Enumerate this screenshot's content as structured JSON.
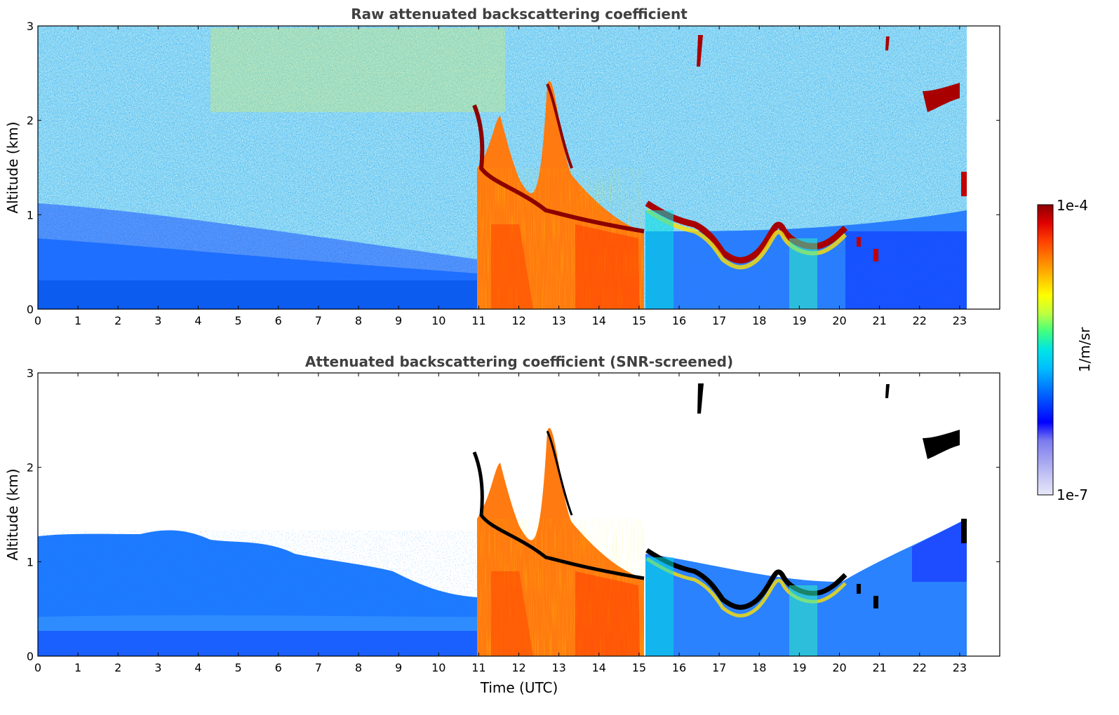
{
  "chart_data": [
    {
      "type": "heatmap",
      "title": "Raw attenuated backscattering coefficient",
      "xlabel": "",
      "ylabel": "Altitude (km)",
      "xlim": [
        0,
        24
      ],
      "ylim": [
        0,
        3
      ],
      "xticks": [
        0,
        1,
        2,
        3,
        4,
        5,
        6,
        7,
        8,
        9,
        10,
        11,
        12,
        13,
        14,
        15,
        16,
        17,
        18,
        19,
        20,
        21,
        22,
        23
      ],
      "yticks": [
        0,
        1,
        2,
        3
      ],
      "data_end_time": 23.15,
      "colorscale": "jet (log)",
      "features": [
        {
          "name": "noisy background",
          "x": [
            0,
            23.15
          ],
          "y": [
            0,
            3
          ]
        },
        {
          "name": "boundary layer aerosol",
          "x": [
            0,
            10.9
          ],
          "y": [
            0,
            0.6
          ]
        },
        {
          "name": "low cloud / precipitation",
          "x": [
            10.95,
            15.1
          ],
          "y": [
            0,
            1.5
          ]
        },
        {
          "name": "cloud top layer",
          "x": [
            10.95,
            20.2
          ],
          "y": [
            0.45,
            2.5
          ]
        },
        {
          "name": "upper cloud",
          "x": [
            22.0,
            23.0
          ],
          "y": [
            2.0,
            2.4
          ]
        }
      ]
    },
    {
      "type": "heatmap",
      "title": "Attenuated backscattering coefficient (SNR-screened)",
      "xlabel": "Time (UTC)",
      "ylabel": "Altitude (km)",
      "xlim": [
        0,
        24
      ],
      "ylim": [
        0,
        3
      ],
      "xticks": [
        0,
        1,
        2,
        3,
        4,
        5,
        6,
        7,
        8,
        9,
        10,
        11,
        12,
        13,
        14,
        15,
        16,
        17,
        18,
        19,
        20,
        21,
        22,
        23
      ],
      "yticks": [
        0,
        1,
        2,
        3
      ],
      "data_end_time": 23.15,
      "colorscale": "jet (log)",
      "features": [
        {
          "name": "aerosol layer",
          "x": [
            0,
            10.9
          ],
          "y": [
            0,
            1.3
          ]
        },
        {
          "name": "low cloud / precipitation",
          "x": [
            10.95,
            15.1
          ],
          "y": [
            0,
            1.5
          ]
        },
        {
          "name": "cloud top layer",
          "x": [
            10.95,
            20.2
          ],
          "y": [
            0.45,
            2.5
          ]
        },
        {
          "name": "upper cloud",
          "x": [
            22.0,
            23.0
          ],
          "y": [
            2.0,
            2.4
          ]
        }
      ]
    }
  ],
  "colorbar": {
    "label": "1/m/sr",
    "max_label": "1e-4",
    "min_label": "1e-7",
    "colors": [
      "#e8e8fa",
      "#c6c6f5",
      "#a0a0f0",
      "#7a7af0",
      "#0000ff",
      "#0040ff",
      "#0080ff",
      "#00bfff",
      "#00e5e5",
      "#40ff80",
      "#bfff40",
      "#ffff00",
      "#ffbf00",
      "#ff8000",
      "#ff4000",
      "#e00000",
      "#8b0000"
    ]
  }
}
